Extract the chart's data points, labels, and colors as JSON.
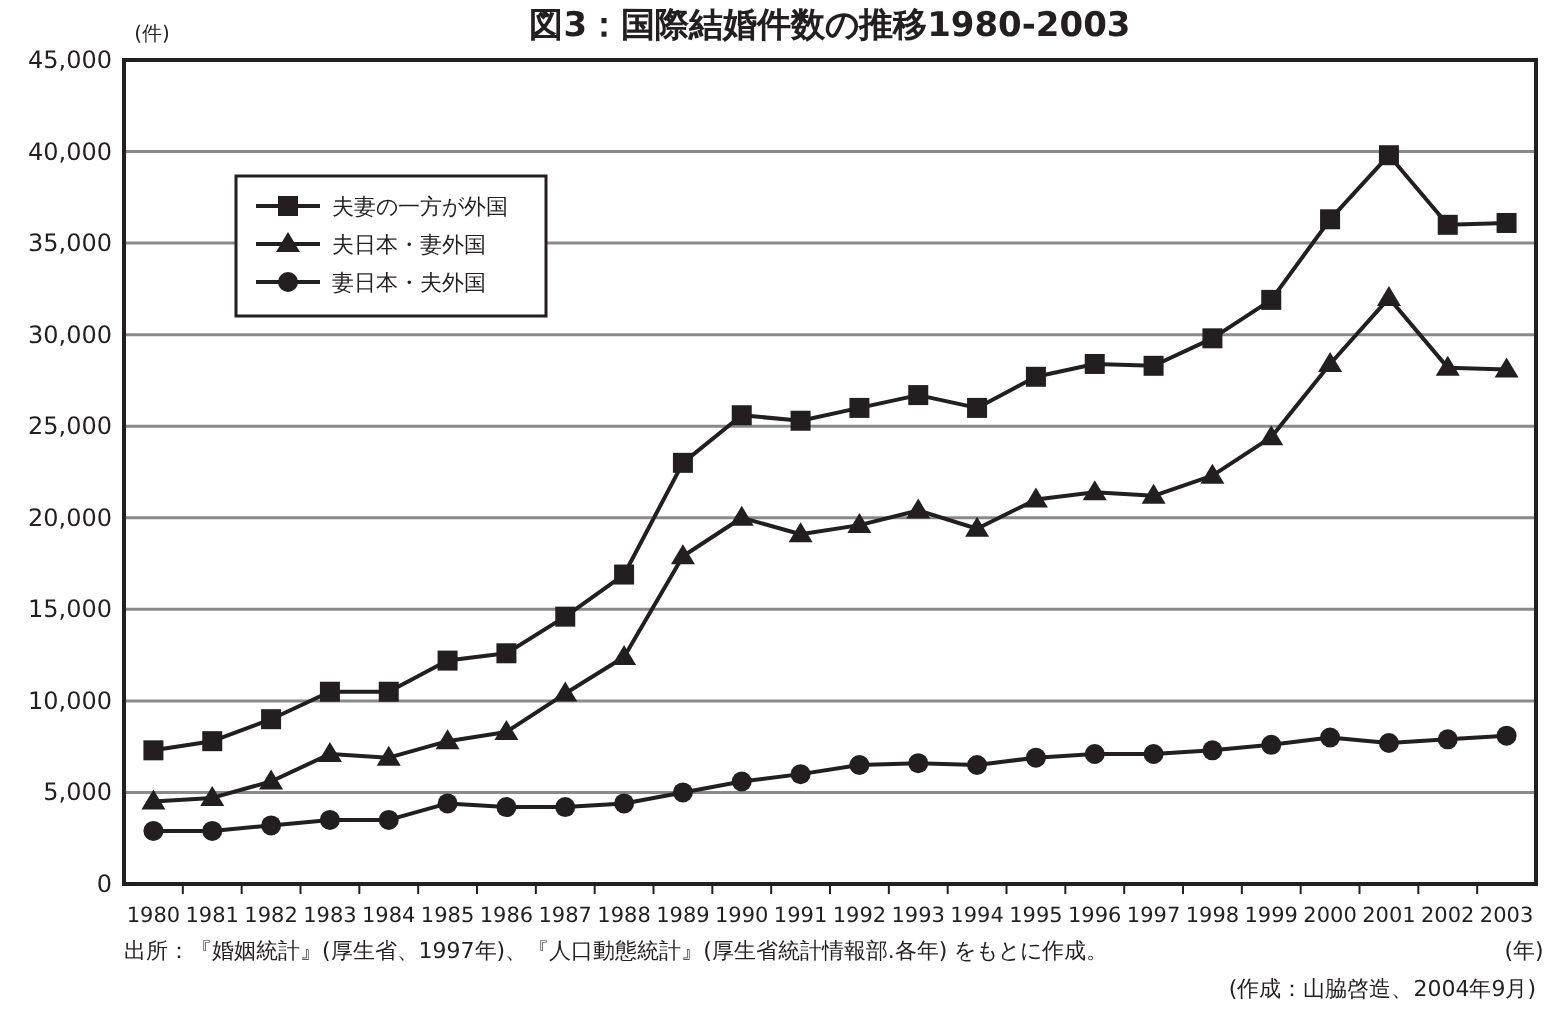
{
  "chart_data": {
    "type": "line",
    "title": "図3：国際結婚件数の推移1980-2003",
    "ylabel": "(件)",
    "xlabel": "(年)",
    "categories": [
      "1980",
      "1981",
      "1982",
      "1983",
      "1984",
      "1985",
      "1986",
      "1987",
      "1988",
      "1989",
      "1990",
      "1991",
      "1992",
      "1993",
      "1994",
      "1995",
      "1996",
      "1997",
      "1998",
      "1999",
      "2000",
      "2001",
      "2002",
      "2003"
    ],
    "series": [
      {
        "name": "夫妻の一方が外国",
        "color": "#231f20",
        "marker": "square",
        "values": [
          7300,
          7800,
          9000,
          10500,
          10500,
          12200,
          12600,
          14600,
          16900,
          23000,
          25600,
          25300,
          26000,
          26700,
          26000,
          27700,
          28400,
          28300,
          29800,
          31900,
          36300,
          39800,
          36000,
          36100
        ]
      },
      {
        "name": "夫日本・妻外国",
        "color": "#231f20",
        "marker": "triangle",
        "values": [
          4500,
          4700,
          5600,
          7100,
          6900,
          7800,
          8300,
          10400,
          12400,
          17900,
          20000,
          19100,
          19600,
          20400,
          19400,
          21000,
          21400,
          21200,
          22300,
          24400,
          28400,
          32000,
          28200,
          28100
        ]
      },
      {
        "name": "妻日本・夫外国",
        "color": "#231f20",
        "marker": "circle",
        "values": [
          2900,
          2900,
          3200,
          3500,
          3500,
          4400,
          4200,
          4200,
          4400,
          5000,
          5600,
          6000,
          6500,
          6600,
          6500,
          6900,
          7100,
          7100,
          7300,
          7600,
          8000,
          7700,
          7900,
          8100
        ]
      }
    ],
    "ylim": [
      0,
      45000
    ],
    "yticks": [
      {
        "value": 0,
        "label": "0"
      },
      {
        "value": 5000,
        "label": "5,000"
      },
      {
        "value": 10000,
        "label": "10,000"
      },
      {
        "value": 15000,
        "label": "15,000"
      },
      {
        "value": 20000,
        "label": "20,000"
      },
      {
        "value": 25000,
        "label": "25,000"
      },
      {
        "value": 30000,
        "label": "30,000"
      },
      {
        "value": 35000,
        "label": "35,000"
      },
      {
        "value": 40000,
        "label": "40,000"
      },
      {
        "value": 45000,
        "label": "45,000"
      }
    ],
    "grid": "y",
    "legend": "top left",
    "line_style": "solid",
    "annotations": [
      "出所：『婚姻統計』(厚生省、1997年)、『人口動態統計』(厚生省統計情報部.各年) をもとに作成。",
      "(作成：山脇啓造、2004年9月)"
    ]
  }
}
